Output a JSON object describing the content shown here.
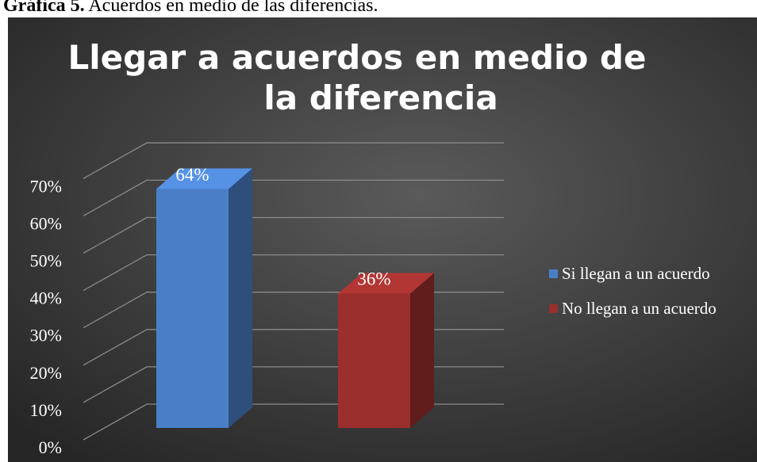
{
  "caption": {
    "label": "Gráfica 5.",
    "text": "Acuerdos en medio de las diferencias."
  },
  "chart_data": {
    "type": "bar3d",
    "title": "Llegar a acuerdos en medio de la diferencia",
    "categories": [
      null
    ],
    "series": [
      {
        "name": "Si llegan a un acuerdo",
        "color": "#4a7fc8",
        "values": [
          64
        ],
        "value_labels": [
          "64%"
        ]
      },
      {
        "name": "No llegan a un acuerdo",
        "color": "#9b2f2d",
        "values": [
          36
        ],
        "value_labels": [
          "36%"
        ]
      }
    ],
    "ylim": [
      0,
      70
    ],
    "yticks": [
      {
        "value": 0,
        "label": "0%"
      },
      {
        "value": 10,
        "label": "10%"
      },
      {
        "value": 20,
        "label": "20%"
      },
      {
        "value": 30,
        "label": "30%"
      },
      {
        "value": 40,
        "label": "40%"
      },
      {
        "value": 50,
        "label": "50%"
      },
      {
        "value": 60,
        "label": "60%"
      },
      {
        "value": 70,
        "label": "70%"
      }
    ],
    "grid": true,
    "legend": "right"
  }
}
